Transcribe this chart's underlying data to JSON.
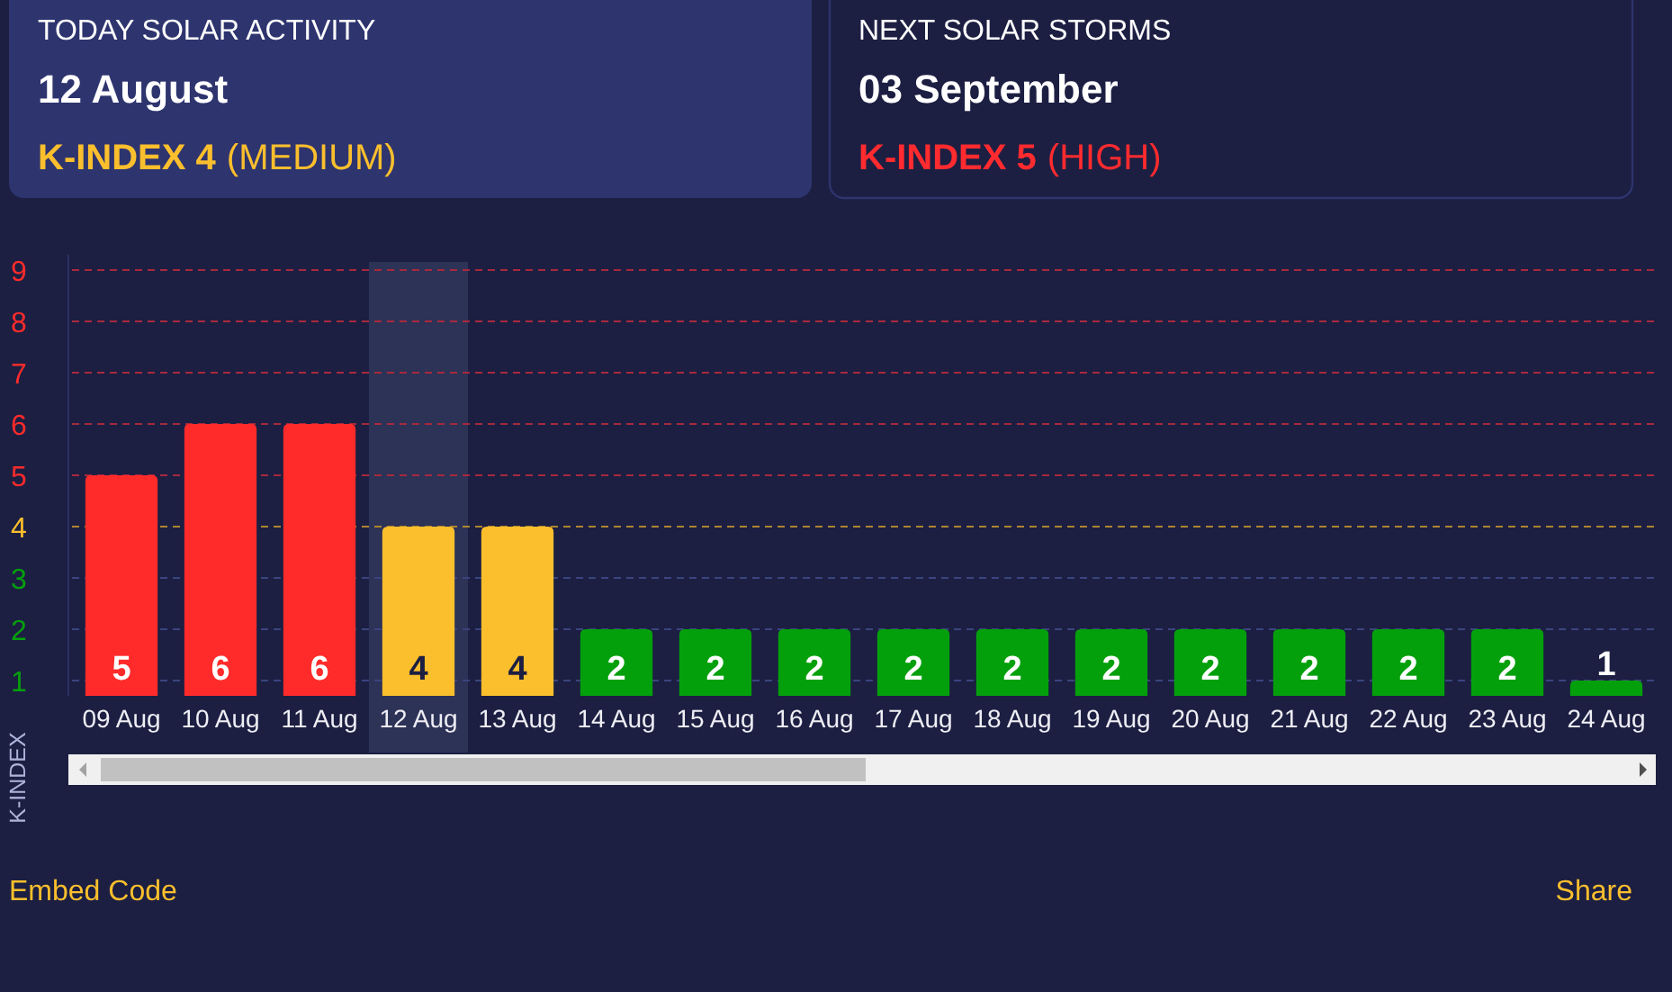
{
  "chart_data": [
    {
      "type": "other",
      "title": "TODAY SOLAR ACTIVITY",
      "subtitle": "12 August",
      "annotations": [
        "K-INDEX 4",
        "(MEDIUM)"
      ],
      "color": "#fbbf2d"
    },
    {
      "type": "other",
      "title": "NEXT SOLAR STORMS",
      "subtitle": "03 September",
      "annotations": [
        "K-INDEX 5",
        "(HIGH)"
      ],
      "color": "#ff2b2f"
    },
    {
      "type": "bar",
      "ylabel": "K-INDEX",
      "categories": [
        "09 Aug",
        "10 Aug",
        "11 Aug",
        "12 Aug",
        "13 Aug",
        "14 Aug",
        "15 Aug",
        "16 Aug",
        "17 Aug",
        "18 Aug",
        "19 Aug",
        "20 Aug",
        "21 Aug",
        "22 Aug",
        "23 Aug",
        "24 Aug"
      ],
      "values": [
        5,
        6,
        6,
        4,
        4,
        2,
        2,
        2,
        2,
        2,
        2,
        2,
        2,
        2,
        2,
        1
      ],
      "colors": [
        "#ff2b2b",
        "#ff2b2b",
        "#ff2b2b",
        "#fbbf2d",
        "#fbbf2d",
        "#04a00c",
        "#04a00c",
        "#04a00c",
        "#04a00c",
        "#04a00c",
        "#04a00c",
        "#04a00c",
        "#04a00c",
        "#04a00c",
        "#04a00c",
        "#04a00c"
      ],
      "ylim": [
        0.7,
        9.3
      ],
      "yticks": [
        1,
        2,
        3,
        4,
        5,
        6,
        7,
        8,
        9
      ],
      "data_labels": true,
      "ref_lines": [
        {
          "axis": "y",
          "value": 9,
          "color": "#a8293d",
          "line_style": "dashed"
        },
        {
          "axis": "y",
          "value": 8,
          "color": "#a8293d",
          "line_style": "dashed"
        },
        {
          "axis": "y",
          "value": 7,
          "color": "#a8293d",
          "line_style": "dashed"
        },
        {
          "axis": "y",
          "value": 6,
          "color": "#a8293d",
          "line_style": "dashed"
        },
        {
          "axis": "y",
          "value": 5,
          "color": "#a8293d",
          "line_style": "dashed"
        },
        {
          "axis": "y",
          "value": 4,
          "color": "#ad8530",
          "line_style": "dashed"
        },
        {
          "axis": "y",
          "value": 3,
          "color": "#3a447e",
          "line_style": "dashed"
        },
        {
          "axis": "y",
          "value": 2,
          "color": "#3a447e",
          "line_style": "dashed"
        },
        {
          "axis": "y",
          "value": 1,
          "color": "#3a447e",
          "line_style": "dashed"
        }
      ],
      "bands": [
        {
          "axis": "x",
          "from": "12 Aug",
          "to": "12 Aug",
          "color": "#2d3257"
        }
      ],
      "annotations": [
        "Embed Code",
        "Share"
      ]
    }
  ]
}
